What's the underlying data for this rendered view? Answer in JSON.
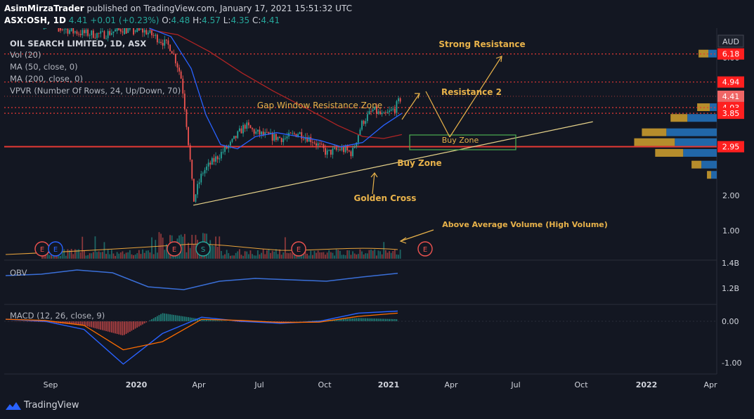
{
  "header": {
    "author": "AsimMirzaTrader",
    "published_text": "published on TradingView.com, January 17, 2021 15:51:32 UTC",
    "symbol": "ASX:OSH, 1D",
    "last": "4.41",
    "change": "+0.01 (+0.23%)",
    "o_label": "O:",
    "o": "4.48",
    "h_label": "H:",
    "h": "4.57",
    "l_label": "L:",
    "l": "4.35",
    "c_label": "C:",
    "c": "4.41"
  },
  "legend": {
    "title": "OIL SEARCH LIMITED, 1D, ASX",
    "vol": "Vol (20)",
    "ma50": "MA (50, close, 0)",
    "ma200": "MA (200, close, 0)",
    "vpvr": "VPVR (Number Of Rows, 24, Up/Down, 70)",
    "obv": "OBV",
    "macd": "MACD (12, 26, close, 9)"
  },
  "annotations": {
    "strong_resistance": "Strong Resistance",
    "resistance2": "Resistance 2",
    "gap_zone": "Gap Window Resistance Zone",
    "buy_zone_box": "Buy Zone",
    "buy_zone_line": "Buy Zone",
    "golden_cross": "Golden Cross",
    "above_avg_volume": "Above Average Volume (High Volume)"
  },
  "earnings_marker": "E",
  "split_marker": "S",
  "currency": "AUD",
  "footer": {
    "brand": "TradingView"
  },
  "colors": {
    "background": "#131722",
    "up": "#26a69a",
    "down": "#ef5350",
    "ma50": "#2962ff",
    "ma200": "#b02424",
    "annotation": "#e8b24a",
    "vpvr_up": "#2470b8",
    "vpvr_down": "#c99a2e",
    "level_line": "#e53935"
  },
  "chart_data": {
    "type": "candlestick",
    "x_ticks": [
      "Sep",
      "2020",
      "Apr",
      "Jul",
      "Oct",
      "2021",
      "Apr",
      "Jul",
      "Oct",
      "2022",
      "Apr"
    ],
    "price_axis_ticks": [
      "6.00",
      "2.00",
      "1.00"
    ],
    "price_labels": [
      {
        "value": "6.18",
        "style": "red"
      },
      {
        "value": "4.94",
        "style": "red"
      },
      {
        "value": "4.41",
        "style": "current"
      },
      {
        "value": "4.03",
        "style": "red"
      },
      {
        "value": "3.85",
        "style": "red"
      },
      {
        "value": "2.95",
        "style": "red"
      }
    ],
    "horizontal_levels": [
      6.18,
      4.94,
      4.41,
      4.03,
      3.85,
      2.95
    ],
    "price_series": [
      [
        "2019-08-20",
        8.0
      ],
      [
        "2019-09-15",
        7.6
      ],
      [
        "2019-10-15",
        7.3
      ],
      [
        "2019-11-15",
        7.2
      ],
      [
        "2019-12-15",
        7.6
      ],
      [
        "2020-01-15",
        7.4
      ],
      [
        "2020-02-01",
        7.0
      ],
      [
        "2020-02-20",
        6.5
      ],
      [
        "2020-03-05",
        5.2
      ],
      [
        "2020-03-15",
        3.2
      ],
      [
        "2020-03-23",
        1.9
      ],
      [
        "2020-04-05",
        2.4
      ],
      [
        "2020-04-25",
        2.7
      ],
      [
        "2020-05-15",
        3.0
      ],
      [
        "2020-06-05",
        3.5
      ],
      [
        "2020-06-20",
        3.3
      ],
      [
        "2020-07-10",
        3.2
      ],
      [
        "2020-08-01",
        3.15
      ],
      [
        "2020-08-20",
        3.3
      ],
      [
        "2020-09-10",
        3.1
      ],
      [
        "2020-09-30",
        2.8
      ],
      [
        "2020-10-20",
        2.9
      ],
      [
        "2020-11-05",
        2.8
      ],
      [
        "2020-11-20",
        3.6
      ],
      [
        "2020-12-05",
        3.95
      ],
      [
        "2020-12-20",
        3.75
      ],
      [
        "2021-01-05",
        4.0
      ],
      [
        "2021-01-15",
        4.41
      ]
    ],
    "ma50_series": [
      [
        "2020-01-20",
        7.6
      ],
      [
        "2020-02-20",
        7.1
      ],
      [
        "2020-03-20",
        5.5
      ],
      [
        "2020-04-10",
        3.8
      ],
      [
        "2020-05-01",
        3.0
      ],
      [
        "2020-05-25",
        2.9
      ],
      [
        "2020-06-20",
        3.2
      ],
      [
        "2020-07-20",
        3.3
      ],
      [
        "2020-08-20",
        3.2
      ],
      [
        "2020-09-20",
        3.1
      ],
      [
        "2020-10-20",
        2.95
      ],
      [
        "2020-11-20",
        3.05
      ],
      [
        "2020-12-20",
        3.5
      ],
      [
        "2021-01-15",
        3.85
      ]
    ],
    "ma200_series": [
      [
        "2020-01-20",
        7.5
      ],
      [
        "2020-03-01",
        7.2
      ],
      [
        "2020-04-15",
        6.3
      ],
      [
        "2020-06-01",
        5.3
      ],
      [
        "2020-07-15",
        4.6
      ],
      [
        "2020-09-01",
        4.0
      ],
      [
        "2020-10-15",
        3.5
      ],
      [
        "2020-11-20",
        3.2
      ],
      [
        "2020-12-20",
        3.15
      ],
      [
        "2021-01-15",
        3.25
      ]
    ],
    "trendline": {
      "from": [
        "2020-03-23",
        1.85
      ],
      "to": [
        "2021-10-15",
        3.6
      ]
    },
    "vpvr_rows": [
      {
        "price": 6.18,
        "up": 0.12,
        "down": 0.14
      },
      {
        "price": 4.03,
        "up": 0.1,
        "down": 0.18
      },
      {
        "price": 3.7,
        "up": 0.42,
        "down": 0.24
      },
      {
        "price": 3.3,
        "up": 0.72,
        "down": 0.35
      },
      {
        "price": 3.05,
        "up": 0.6,
        "down": 0.58
      },
      {
        "price": 2.8,
        "up": 0.48,
        "down": 0.4
      },
      {
        "price": 2.55,
        "up": 0.22,
        "down": 0.14
      },
      {
        "price": 2.35,
        "up": 0.08,
        "down": 0.06
      }
    ],
    "obv_ticks": [
      "1.4B",
      "1.2B"
    ],
    "macd_ticks": [
      "0.00",
      "-1.00"
    ],
    "obv_series": [
      0.7,
      0.75,
      0.9,
      0.8,
      0.3,
      0.2,
      0.5,
      0.6,
      0.55,
      0.5,
      0.65,
      0.78
    ],
    "macd_series": [
      0.05,
      0.0,
      -0.2,
      -1.05,
      -0.3,
      0.1,
      0.0,
      -0.05,
      0.0,
      0.2,
      0.25
    ],
    "signal_series": [
      0.05,
      0.02,
      -0.1,
      -0.7,
      -0.5,
      0.05,
      0.02,
      -0.03,
      -0.02,
      0.12,
      0.2
    ]
  }
}
